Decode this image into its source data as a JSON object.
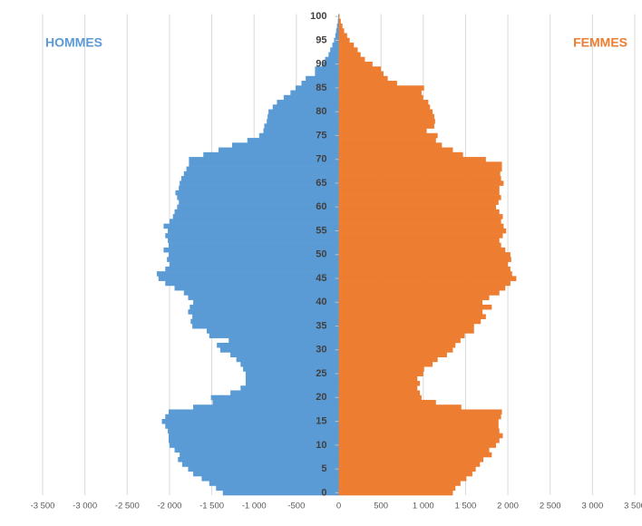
{
  "chart_data": {
    "type": "pyramid",
    "y": [
      0,
      1,
      2,
      3,
      4,
      5,
      6,
      7,
      8,
      9,
      10,
      11,
      12,
      13,
      14,
      15,
      16,
      17,
      18,
      19,
      20,
      21,
      22,
      23,
      24,
      25,
      26,
      27,
      28,
      29,
      30,
      31,
      32,
      33,
      34,
      35,
      36,
      37,
      38,
      39,
      40,
      41,
      42,
      43,
      44,
      45,
      46,
      47,
      48,
      49,
      50,
      51,
      52,
      53,
      54,
      55,
      56,
      57,
      58,
      59,
      60,
      61,
      62,
      63,
      64,
      65,
      66,
      67,
      68,
      69,
      70,
      71,
      72,
      73,
      74,
      75,
      76,
      77,
      78,
      79,
      80,
      81,
      82,
      83,
      84,
      85,
      86,
      87,
      88,
      89,
      90,
      91,
      92,
      93,
      94,
      95,
      96,
      97,
      98,
      99,
      100
    ],
    "series": [
      {
        "name": "HOMMES",
        "color": "#5b9bd5",
        "values": [
          -1370,
          -1450,
          -1530,
          -1620,
          -1720,
          -1780,
          -1850,
          -1900,
          -1880,
          -1940,
          -2000,
          -2010,
          -2010,
          -2020,
          -2050,
          -2090,
          -2050,
          -2010,
          -1720,
          -1490,
          -1510,
          -1280,
          -1160,
          -1100,
          -1100,
          -1100,
          -1130,
          -1160,
          -1210,
          -1280,
          -1400,
          -1440,
          -1300,
          -1530,
          -1560,
          -1730,
          -1750,
          -1730,
          -1780,
          -1760,
          -1720,
          -1780,
          -1830,
          -1940,
          -2050,
          -2130,
          -2150,
          -2050,
          -2000,
          -2030,
          -2010,
          -2070,
          -2010,
          -2020,
          -2050,
          -2020,
          -2070,
          -2000,
          -1960,
          -1940,
          -1910,
          -1890,
          -1910,
          -1930,
          -1890,
          -1880,
          -1860,
          -1830,
          -1800,
          -1770,
          -1770,
          -1600,
          -1420,
          -1260,
          -1080,
          -940,
          -890,
          -880,
          -850,
          -840,
          -830,
          -780,
          -730,
          -650,
          -570,
          -510,
          -440,
          -390,
          -280,
          -280,
          -200,
          -160,
          -120,
          -100,
          -75,
          -55,
          -40,
          -30,
          -20,
          -10,
          -5
        ]
      },
      {
        "name": "FEMMES",
        "color": "#ed7d31",
        "values": [
          1350,
          1380,
          1440,
          1510,
          1580,
          1620,
          1670,
          1710,
          1810,
          1780,
          1860,
          1900,
          1940,
          1900,
          1890,
          1890,
          1920,
          1930,
          1450,
          1150,
          980,
          960,
          930,
          960,
          930,
          1000,
          1010,
          1110,
          1170,
          1280,
          1350,
          1380,
          1440,
          1490,
          1600,
          1600,
          1680,
          1740,
          1700,
          1810,
          1700,
          1780,
          1900,
          1970,
          2030,
          2100,
          2050,
          2030,
          2000,
          2040,
          2030,
          1970,
          1920,
          1900,
          1940,
          1980,
          1950,
          1920,
          1940,
          1900,
          1860,
          1890,
          1920,
          1900,
          1900,
          1950,
          1920,
          1910,
          1930,
          1930,
          1740,
          1470,
          1350,
          1220,
          1150,
          1170,
          1040,
          1130,
          1140,
          1130,
          1110,
          1080,
          1060,
          1000,
          980,
          1010,
          690,
          580,
          530,
          500,
          400,
          310,
          260,
          225,
          180,
          130,
          100,
          65,
          45,
          25,
          10
        ]
      }
    ],
    "xlim": [
      -3500,
      3500
    ],
    "xticks": [
      {
        "value": -3500,
        "label": "-3 500"
      },
      {
        "value": -3000,
        "label": "-3 000"
      },
      {
        "value": -2500,
        "label": "-2 500"
      },
      {
        "value": -2000,
        "label": "-2 000"
      },
      {
        "value": -1500,
        "label": "-1 500"
      },
      {
        "value": -1000,
        "label": "-1 000"
      },
      -500,
      0,
      500,
      {
        "value": 1000,
        "label": "1 000"
      },
      {
        "value": 1500,
        "label": "1 500"
      },
      {
        "value": 2000,
        "label": "2 000"
      },
      {
        "value": 2500,
        "label": "2 500"
      },
      {
        "value": 3000,
        "label": "3 000"
      },
      {
        "value": 3500,
        "label": "3 500"
      }
    ],
    "ylim": [
      -0.5,
      100.5
    ],
    "yticks": [
      0,
      5,
      10,
      15,
      20,
      25,
      30,
      35,
      40,
      45,
      50,
      55,
      60,
      65,
      70,
      75,
      80,
      85,
      90,
      95,
      100
    ],
    "grid": true
  }
}
